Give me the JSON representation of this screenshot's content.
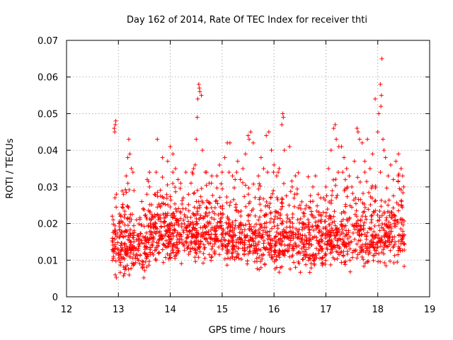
{
  "chart_data": {
    "type": "scatter",
    "title": "Day 162 of 2014, Rate Of TEC Index for receiver thti",
    "xlabel": "GPS time / hours",
    "ylabel": "ROTI / TECUs",
    "xlim": [
      12,
      19
    ],
    "ylim": [
      0,
      0.07
    ],
    "xticks": [
      "12",
      "13",
      "14",
      "15",
      "16",
      "17",
      "18",
      "19"
    ],
    "yticks": [
      "0",
      "0.01",
      "0.02",
      "0.03",
      "0.04",
      "0.05",
      "0.06",
      "0.07"
    ],
    "grid": true,
    "marker": "+",
    "color": "#ff0000",
    "series": [
      {
        "name": "ROTI",
        "points": [
          [
            12.88,
            0.022
          ],
          [
            12.9,
            0.021
          ],
          [
            12.92,
            0.046
          ],
          [
            12.93,
            0.045
          ],
          [
            12.95,
            0.048
          ],
          [
            12.94,
            0.047
          ],
          [
            13.0,
            0.013
          ],
          [
            13.05,
            0.011
          ],
          [
            13.1,
            0.028
          ],
          [
            13.15,
            0.033
          ],
          [
            13.18,
            0.038
          ],
          [
            13.2,
            0.043
          ],
          [
            13.22,
            0.039
          ],
          [
            13.25,
            0.035
          ],
          [
            13.28,
            0.034
          ],
          [
            13.3,
            0.029
          ],
          [
            13.35,
            0.021
          ],
          [
            13.45,
            0.026
          ],
          [
            13.55,
            0.028
          ],
          [
            13.6,
            0.03
          ],
          [
            13.7,
            0.028
          ],
          [
            13.75,
            0.043
          ],
          [
            13.85,
            0.038
          ],
          [
            13.95,
            0.037
          ],
          [
            14.0,
            0.041
          ],
          [
            14.05,
            0.039
          ],
          [
            14.1,
            0.035
          ],
          [
            14.15,
            0.032
          ],
          [
            14.2,
            0.031
          ],
          [
            14.25,
            0.027
          ],
          [
            14.3,
            0.024
          ],
          [
            14.35,
            0.028
          ],
          [
            14.4,
            0.031
          ],
          [
            14.45,
            0.035
          ],
          [
            14.48,
            0.036
          ],
          [
            14.5,
            0.043
          ],
          [
            14.52,
            0.049
          ],
          [
            14.53,
            0.054
          ],
          [
            14.55,
            0.058
          ],
          [
            14.56,
            0.057
          ],
          [
            14.57,
            0.056
          ],
          [
            14.6,
            0.055
          ],
          [
            14.62,
            0.04
          ],
          [
            14.7,
            0.034
          ],
          [
            14.75,
            0.031
          ],
          [
            14.8,
            0.033
          ],
          [
            14.9,
            0.033
          ],
          [
            14.95,
            0.036
          ],
          [
            15.0,
            0.034
          ],
          [
            15.05,
            0.038
          ],
          [
            15.1,
            0.042
          ],
          [
            15.15,
            0.042
          ],
          [
            15.2,
            0.033
          ],
          [
            15.25,
            0.032
          ],
          [
            15.3,
            0.037
          ],
          [
            15.35,
            0.032
          ],
          [
            15.4,
            0.035
          ],
          [
            15.45,
            0.039
          ],
          [
            15.5,
            0.044
          ],
          [
            15.52,
            0.043
          ],
          [
            15.55,
            0.045
          ],
          [
            15.6,
            0.042
          ],
          [
            15.7,
            0.033
          ],
          [
            15.75,
            0.038
          ],
          [
            15.8,
            0.035
          ],
          [
            15.85,
            0.044
          ],
          [
            15.9,
            0.045
          ],
          [
            15.95,
            0.04
          ],
          [
            16.0,
            0.036
          ],
          [
            16.05,
            0.033
          ],
          [
            16.1,
            0.035
          ],
          [
            16.15,
            0.047
          ],
          [
            16.17,
            0.05
          ],
          [
            16.18,
            0.049
          ],
          [
            16.2,
            0.04
          ],
          [
            16.3,
            0.041
          ],
          [
            16.35,
            0.03
          ],
          [
            16.4,
            0.028
          ],
          [
            16.5,
            0.025
          ],
          [
            16.6,
            0.024
          ],
          [
            16.7,
            0.026
          ],
          [
            16.75,
            0.03
          ],
          [
            16.8,
            0.033
          ],
          [
            16.85,
            0.028
          ],
          [
            16.9,
            0.027
          ],
          [
            16.95,
            0.023
          ],
          [
            17.0,
            0.03
          ],
          [
            17.05,
            0.035
          ],
          [
            17.1,
            0.04
          ],
          [
            17.15,
            0.046
          ],
          [
            17.18,
            0.047
          ],
          [
            17.2,
            0.043
          ],
          [
            17.25,
            0.041
          ],
          [
            17.3,
            0.041
          ],
          [
            17.35,
            0.038
          ],
          [
            17.4,
            0.035
          ],
          [
            17.45,
            0.033
          ],
          [
            17.5,
            0.03
          ],
          [
            17.55,
            0.037
          ],
          [
            17.6,
            0.046
          ],
          [
            17.62,
            0.045
          ],
          [
            17.65,
            0.043
          ],
          [
            17.7,
            0.042
          ],
          [
            17.75,
            0.037
          ],
          [
            17.8,
            0.043
          ],
          [
            17.85,
            0.035
          ],
          [
            17.9,
            0.039
          ],
          [
            17.95,
            0.054
          ],
          [
            18.0,
            0.045
          ],
          [
            18.02,
            0.05
          ],
          [
            18.05,
            0.058
          ],
          [
            18.06,
            0.052
          ],
          [
            18.07,
            0.055
          ],
          [
            18.08,
            0.065
          ],
          [
            18.1,
            0.043
          ],
          [
            18.12,
            0.04
          ],
          [
            18.15,
            0.038
          ],
          [
            18.2,
            0.033
          ],
          [
            18.25,
            0.036
          ],
          [
            18.3,
            0.032
          ],
          [
            18.35,
            0.037
          ],
          [
            18.4,
            0.039
          ],
          [
            18.45,
            0.035
          ],
          [
            18.48,
            0.033
          ],
          [
            18.5,
            0.03
          ]
        ]
      }
    ]
  }
}
